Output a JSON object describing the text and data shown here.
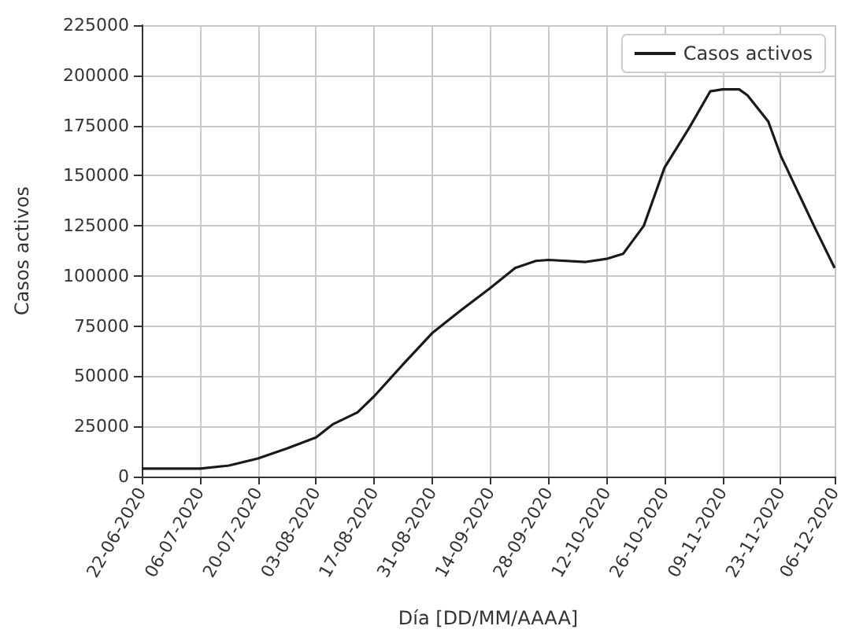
{
  "chart_data": {
    "type": "line",
    "xlabel": "Día [DD/MM/AAAA]",
    "ylabel": "Casos activos",
    "x": [
      "2020-06-22",
      "2020-07-06",
      "2020-07-13",
      "2020-07-20",
      "2020-07-27",
      "2020-08-03",
      "2020-08-07",
      "2020-08-13",
      "2020-08-17",
      "2020-08-24",
      "2020-08-31",
      "2020-09-07",
      "2020-09-14",
      "2020-09-20",
      "2020-09-25",
      "2020-09-28",
      "2020-10-07",
      "2020-10-12",
      "2020-10-16",
      "2020-10-21",
      "2020-10-26",
      "2020-11-01",
      "2020-11-06",
      "2020-11-09",
      "2020-11-13",
      "2020-11-15",
      "2020-11-20",
      "2020-11-23",
      "2020-12-01",
      "2020-12-06"
    ],
    "series": [
      {
        "name": "Casos activos",
        "color": "#1a1a1a",
        "values": [
          4000,
          4000,
          5500,
          9000,
          14000,
          19500,
          26000,
          32000,
          40000,
          56000,
          71500,
          83000,
          94000,
          104000,
          107500,
          108000,
          107000,
          108500,
          111000,
          125000,
          154000,
          174000,
          192000,
          193000,
          193000,
          190000,
          177000,
          160000,
          125000,
          104000
        ]
      }
    ],
    "xlim": [
      "2020-06-22",
      "2020-12-06"
    ],
    "xticks": [
      {
        "value": "2020-06-22",
        "label": "22-06-2020"
      },
      {
        "value": "2020-07-06",
        "label": "06-07-2020"
      },
      {
        "value": "2020-07-20",
        "label": "20-07-2020"
      },
      {
        "value": "2020-08-03",
        "label": "03-08-2020"
      },
      {
        "value": "2020-08-17",
        "label": "17-08-2020"
      },
      {
        "value": "2020-08-31",
        "label": "31-08-2020"
      },
      {
        "value": "2020-09-14",
        "label": "14-09-2020"
      },
      {
        "value": "2020-09-28",
        "label": "28-09-2020"
      },
      {
        "value": "2020-10-12",
        "label": "12-10-2020"
      },
      {
        "value": "2020-10-26",
        "label": "26-10-2020"
      },
      {
        "value": "2020-11-09",
        "label": "09-11-2020"
      },
      {
        "value": "2020-11-23",
        "label": "23-11-2020"
      },
      {
        "value": "2020-12-06",
        "label": "06-12-2020"
      }
    ],
    "ylim": [
      0,
      225000
    ],
    "yticks": [
      0,
      25000,
      50000,
      75000,
      100000,
      125000,
      150000,
      175000,
      200000,
      225000
    ],
    "grid": true,
    "legend": "top right",
    "marker": "none",
    "line_style": "solid"
  }
}
